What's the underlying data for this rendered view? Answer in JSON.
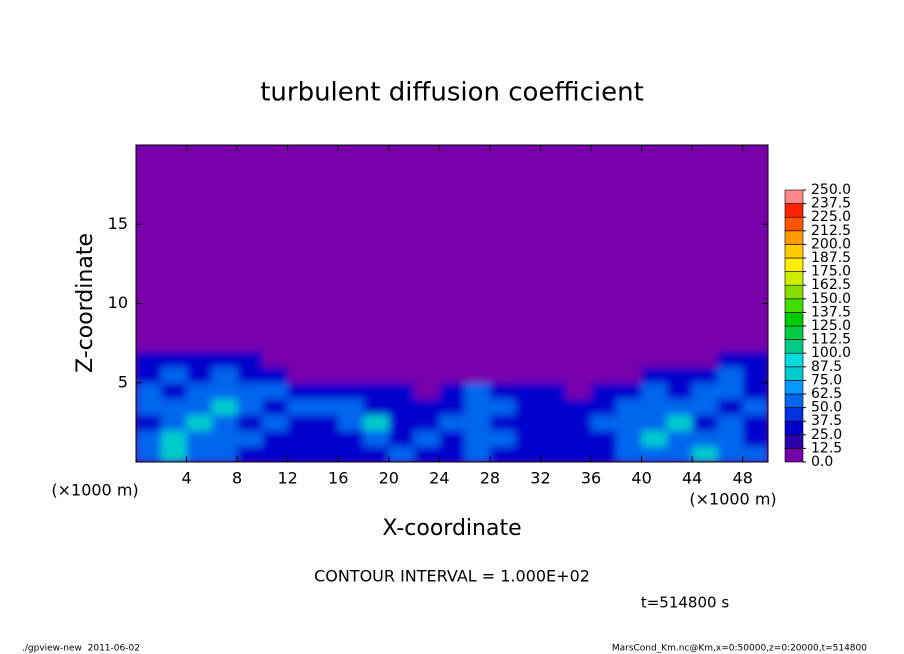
{
  "chart_data": {
    "type": "contour",
    "title": "turbulent diffusion coefficient",
    "x_label": "X-coordinate",
    "y_label": "Z-coordinate",
    "x_unit": "(×1000 m)",
    "y_unit": "(×1000 m)",
    "xlim": [
      0,
      50
    ],
    "ylim": [
      0,
      20
    ],
    "xticks": [
      4,
      8,
      12,
      16,
      20,
      24,
      28,
      32,
      36,
      40,
      44,
      48
    ],
    "yticks": [
      5,
      10,
      15
    ],
    "x_edges": [
      0,
      2,
      4,
      6,
      8,
      10,
      12,
      14,
      16,
      18,
      20,
      22,
      24,
      26,
      28,
      30,
      32,
      34,
      36,
      38,
      40,
      42,
      44,
      46,
      48,
      50
    ],
    "y_edges": [
      0,
      1,
      2,
      3,
      4,
      5,
      6,
      7,
      8
    ],
    "z": [
      [
        62,
        75,
        50,
        62,
        37,
        37,
        25,
        37,
        25,
        37,
        50,
        37,
        25,
        50,
        37,
        37,
        25,
        37,
        37,
        50,
        62,
        50,
        75,
        62,
        50
      ],
      [
        50,
        75,
        62,
        50,
        50,
        37,
        37,
        25,
        37,
        62,
        37,
        50,
        37,
        62,
        50,
        37,
        37,
        25,
        37,
        50,
        75,
        62,
        62,
        50,
        37
      ],
      [
        37,
        62,
        75,
        62,
        37,
        50,
        25,
        37,
        50,
        75,
        37,
        37,
        50,
        50,
        37,
        25,
        37,
        37,
        50,
        62,
        62,
        75,
        37,
        62,
        37
      ],
      [
        50,
        50,
        62,
        75,
        50,
        37,
        62,
        50,
        62,
        37,
        25,
        37,
        37,
        62,
        50,
        37,
        25,
        37,
        37,
        50,
        50,
        62,
        62,
        37,
        50
      ],
      [
        62,
        37,
        50,
        62,
        62,
        50,
        37,
        25,
        25,
        25,
        25,
        12,
        37,
        50,
        37,
        25,
        25,
        12,
        25,
        25,
        50,
        37,
        62,
        50,
        37
      ],
      [
        37,
        50,
        37,
        50,
        37,
        37,
        12,
        12,
        12,
        0,
        0,
        0,
        0,
        12,
        0,
        0,
        0,
        0,
        12,
        12,
        25,
        25,
        37,
        50,
        37
      ],
      [
        25,
        37,
        37,
        37,
        25,
        12,
        0,
        0,
        0,
        0,
        0,
        0,
        0,
        0,
        0,
        0,
        0,
        0,
        0,
        0,
        0,
        0,
        12,
        25,
        37
      ],
      [
        0,
        0,
        0,
        12,
        0,
        0,
        0,
        0,
        0,
        0,
        0,
        0,
        0,
        0,
        0,
        0,
        0,
        0,
        0,
        0,
        0,
        0,
        0,
        0,
        12
      ]
    ],
    "colorbar": {
      "ticks": [
        {
          "value": 0,
          "label": "0.0"
        },
        {
          "value": 12.5,
          "label": "12.5"
        },
        {
          "value": 25,
          "label": "25.0"
        },
        {
          "value": 37.5,
          "label": "37.5"
        },
        {
          "value": 50,
          "label": "50.0"
        },
        {
          "value": 62.5,
          "label": "62.5"
        },
        {
          "value": 75,
          "label": "75.0"
        },
        {
          "value": 87.5,
          "label": "87.5"
        },
        {
          "value": 100,
          "label": "100.0"
        },
        {
          "value": 112.5,
          "label": "112.5"
        },
        {
          "value": 125,
          "label": "125.0"
        },
        {
          "value": 137.5,
          "label": "137.5"
        },
        {
          "value": 150,
          "label": "150.0"
        },
        {
          "value": 162.5,
          "label": "162.5"
        },
        {
          "value": 175,
          "label": "175.0"
        },
        {
          "value": 187.5,
          "label": "187.5"
        },
        {
          "value": 200,
          "label": "200.0"
        },
        {
          "value": 212.5,
          "label": "212.5"
        },
        {
          "value": 225,
          "label": "225.0"
        },
        {
          "value": 237.5,
          "label": "237.5"
        },
        {
          "value": 250,
          "label": "250.0"
        }
      ],
      "colors": [
        "#7700aa",
        "#2a00a8",
        "#0000cc",
        "#0033dd",
        "#0066ee",
        "#0099ff",
        "#00cccc",
        "#00dddd",
        "#00cc88",
        "#00cc44",
        "#00cc00",
        "#44dd00",
        "#88dd00",
        "#ccee00",
        "#ffee00",
        "#ffcc00",
        "#ff9900",
        "#ff5500",
        "#ff2200",
        "#ff8888"
      ]
    },
    "contour_interval": "CONTOUR INTERVAL = 1.000E+02",
    "time_label": "t=514800 s",
    "footer_left": "./gpview-new  2011-06-02",
    "footer_right": "MarsCond_Km.nc@Km,x=0:50000,z=0:20000,t=514800"
  }
}
